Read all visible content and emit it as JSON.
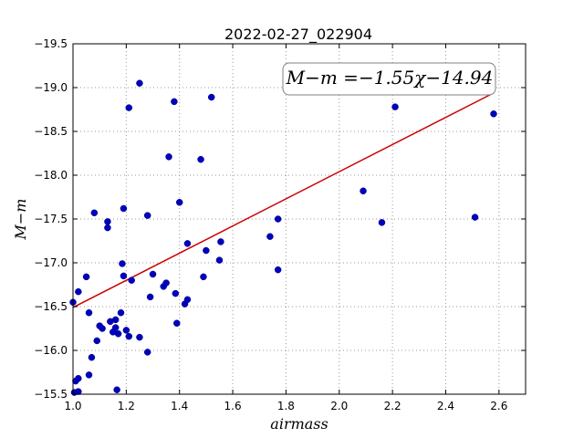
{
  "chart_data": {
    "type": "scatter",
    "title": "2022-02-27_022904",
    "xlabel": "airmass",
    "ylabel": "M−m",
    "xlim": [
      1.0,
      2.7
    ],
    "ylim": [
      -19.5,
      -15.5
    ],
    "y_inverted": true,
    "grid": true,
    "x_ticks": [
      1.0,
      1.2,
      1.4,
      1.6,
      1.8,
      2.0,
      2.2,
      2.4,
      2.6
    ],
    "x_tick_labels": [
      "1.0",
      "1.2",
      "1.4",
      "1.6",
      "1.8",
      "2.0",
      "2.2",
      "2.4",
      "2.6"
    ],
    "y_ticks": [
      -15.5,
      -16.0,
      -16.5,
      -17.0,
      -17.5,
      -18.0,
      -18.5,
      -19.0,
      -19.5
    ],
    "y_tick_labels": [
      "−15.5",
      "−16.0",
      "−16.5",
      "−17.0",
      "−17.5",
      "−18.0",
      "−18.5",
      "−19.0",
      "−19.5"
    ],
    "annotation": "M−m =−1.55χ−14.94",
    "colors": {
      "points": "#0000bf",
      "fit": "#cc0000",
      "grid": "#9a9a9a"
    },
    "series": [
      {
        "kind": "points",
        "values": [
          [
            1.0,
            -16.55
          ],
          [
            1.005,
            -15.52
          ],
          [
            1.01,
            -15.65
          ],
          [
            1.02,
            -15.53
          ],
          [
            1.02,
            -15.68
          ],
          [
            1.02,
            -16.67
          ],
          [
            1.05,
            -16.84
          ],
          [
            1.06,
            -15.72
          ],
          [
            1.06,
            -16.43
          ],
          [
            1.07,
            -15.92
          ],
          [
            1.08,
            -17.57
          ],
          [
            1.09,
            -16.11
          ],
          [
            1.1,
            -16.28
          ],
          [
            1.11,
            -16.25
          ],
          [
            1.13,
            -17.47
          ],
          [
            1.13,
            -17.4
          ],
          [
            1.14,
            -16.33
          ],
          [
            1.15,
            -16.21
          ],
          [
            1.16,
            -16.26
          ],
          [
            1.16,
            -16.35
          ],
          [
            1.165,
            -15.55
          ],
          [
            1.17,
            -16.19
          ],
          [
            1.18,
            -16.43
          ],
          [
            1.185,
            -16.99
          ],
          [
            1.19,
            -16.85
          ],
          [
            1.19,
            -17.62
          ],
          [
            1.2,
            -16.23
          ],
          [
            1.21,
            -16.16
          ],
          [
            1.21,
            -18.77
          ],
          [
            1.22,
            -16.8
          ],
          [
            1.25,
            -16.15
          ],
          [
            1.25,
            -19.05
          ],
          [
            1.28,
            -15.98
          ],
          [
            1.28,
            -17.54
          ],
          [
            1.29,
            -16.61
          ],
          [
            1.3,
            -16.87
          ],
          [
            1.34,
            -16.73
          ],
          [
            1.35,
            -16.77
          ],
          [
            1.36,
            -18.21
          ],
          [
            1.38,
            -18.84
          ],
          [
            1.385,
            -16.65
          ],
          [
            1.39,
            -16.31
          ],
          [
            1.4,
            -17.69
          ],
          [
            1.42,
            -16.53
          ],
          [
            1.43,
            -16.58
          ],
          [
            1.43,
            -17.22
          ],
          [
            1.48,
            -18.18
          ],
          [
            1.49,
            -16.84
          ],
          [
            1.5,
            -17.14
          ],
          [
            1.52,
            -18.89
          ],
          [
            1.55,
            -17.03
          ],
          [
            1.555,
            -17.24
          ],
          [
            1.74,
            -17.3
          ],
          [
            1.77,
            -17.5
          ],
          [
            1.77,
            -16.92
          ],
          [
            2.09,
            -17.82
          ],
          [
            2.16,
            -17.46
          ],
          [
            2.21,
            -18.78
          ],
          [
            2.51,
            -17.52
          ],
          [
            2.58,
            -18.7
          ]
        ]
      },
      {
        "kind": "fit-line",
        "slope": -1.55,
        "intercept": -14.94,
        "x_range": [
          1.0,
          2.58
        ]
      }
    ]
  }
}
